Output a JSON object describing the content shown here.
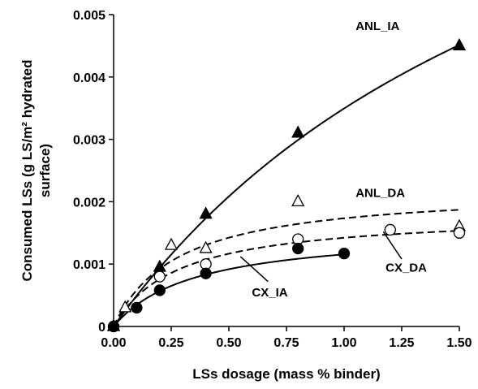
{
  "chart_data": {
    "type": "scatter",
    "xlabel": "LSs dosage (mass % binder)",
    "ylabel_lines": [
      "Consumed LSs (g LS/m² hydrated",
      "surface)"
    ],
    "xlim": [
      0,
      1.5
    ],
    "ylim": [
      0,
      0.005
    ],
    "x_ticks": [
      "0.00",
      "0.25",
      "0.50",
      "0.75",
      "1.00",
      "1.25",
      "1.50"
    ],
    "y_ticks": [
      "0",
      "0.001",
      "0.002",
      "0.003",
      "0.004",
      "0.005"
    ],
    "grid": false,
    "legend": "none",
    "series": [
      {
        "name": "ANL_IA",
        "marker": "filled-triangle",
        "fit_line": "solid",
        "x": [
          0,
          0.2,
          0.4,
          0.8,
          1.5
        ],
        "y": [
          0,
          0.00095,
          0.0018,
          0.0031,
          0.0045
        ]
      },
      {
        "name": "ANL_DA",
        "marker": "open-triangle",
        "fit_line": "dashed",
        "x": [
          0,
          0.05,
          0.25,
          0.4,
          0.8,
          1.5
        ],
        "y": [
          0,
          0.0003,
          0.0013,
          0.00125,
          0.002,
          0.0016
        ]
      },
      {
        "name": "CX_DA",
        "marker": "open-circle",
        "fit_line": "dashed",
        "x": [
          0,
          0.2,
          0.4,
          0.8,
          1.2,
          1.5
        ],
        "y": [
          0,
          0.0008,
          0.001,
          0.0014,
          0.00155,
          0.0015
        ]
      },
      {
        "name": "CX_IA",
        "marker": "filled-circle",
        "fit_line": "solid",
        "x": [
          0,
          0.1,
          0.2,
          0.4,
          0.8,
          1.0
        ],
        "y": [
          0,
          0.0003,
          0.00058,
          0.00085,
          0.00125,
          0.00117
        ]
      }
    ]
  }
}
